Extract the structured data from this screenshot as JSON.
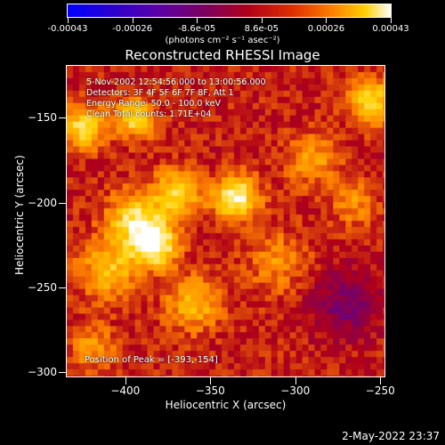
{
  "colorbar": {
    "tick_labels": [
      "-0.00043",
      "-0.00026",
      "-8.6e-05",
      "8.6e-05",
      "0.00026",
      "0.00043"
    ],
    "units": "(photons cm⁻² s⁻¹ asec⁻²)"
  },
  "title": "Reconstructed RHESSI Image",
  "annotations": {
    "time_range": "5-Nov-2002 12:54:56.000 to 13:00:56.000",
    "detectors": "Detectors: 3F 4F 5F 6F 7F 8F, Att 1",
    "energy_range": "Energy Range: 50.0 - 100.0 keV",
    "method_counts": "Clean    Total counts: 1.71E+04",
    "peak": "Position of Peak = [-393,-154]"
  },
  "footer": {
    "date": "2-May-2022 23:37"
  },
  "chart_data": {
    "type": "heatmap",
    "title": "Reconstructed RHESSI Image",
    "xlabel": "Heliocentric X (arcsec)",
    "ylabel": "Heliocentric Y (arcsec)",
    "xlim": [
      -435,
      -247
    ],
    "ylim": [
      -303,
      -119
    ],
    "x_ticks": [
      -400,
      -350,
      -300,
      -250
    ],
    "y_ticks": [
      -150,
      -200,
      -250,
      -300
    ],
    "x_tick_labels": [
      "−400",
      "−350",
      "−300",
      "−250"
    ],
    "y_tick_labels": [
      "−150",
      "−200",
      "−250",
      "−300"
    ],
    "color_range": [
      -0.00043,
      0.00043
    ],
    "peak_position": [
      -393,
      -154
    ],
    "colormap": [
      "#0000ff",
      "#5a00a8",
      "#7a0060",
      "#b00018",
      "#ff8000",
      "#ffd000",
      "#ffffff"
    ],
    "sources": [
      {
        "x": -383,
        "y": -225,
        "sigma": 9,
        "amplitude": 0.00041
      },
      {
        "x": -335,
        "y": -197,
        "sigma": 9,
        "amplitude": 0.00038
      },
      {
        "x": -395,
        "y": -210,
        "sigma": 11,
        "amplitude": 0.0003
      },
      {
        "x": -425,
        "y": -155,
        "sigma": 9,
        "amplitude": 0.0003
      },
      {
        "x": -395,
        "y": -150,
        "sigma": 8,
        "amplitude": 0.00029
      },
      {
        "x": -370,
        "y": -195,
        "sigma": 10,
        "amplitude": 0.00026
      },
      {
        "x": -410,
        "y": -240,
        "sigma": 12,
        "amplitude": 0.00024
      },
      {
        "x": -255,
        "y": -140,
        "sigma": 9,
        "amplitude": 0.0003
      },
      {
        "x": -360,
        "y": -260,
        "sigma": 11,
        "amplitude": 0.00022
      },
      {
        "x": -290,
        "y": -175,
        "sigma": 10,
        "amplitude": 0.00018
      },
      {
        "x": -420,
        "y": -285,
        "sigma": 9,
        "amplitude": 0.00016
      },
      {
        "x": -310,
        "y": -235,
        "sigma": 12,
        "amplitude": 0.00014
      },
      {
        "x": -265,
        "y": -200,
        "sigma": 9,
        "amplitude": 0.00015
      },
      {
        "x": -270,
        "y": -260,
        "sigma": 14,
        "amplitude": -0.00018
      }
    ]
  }
}
